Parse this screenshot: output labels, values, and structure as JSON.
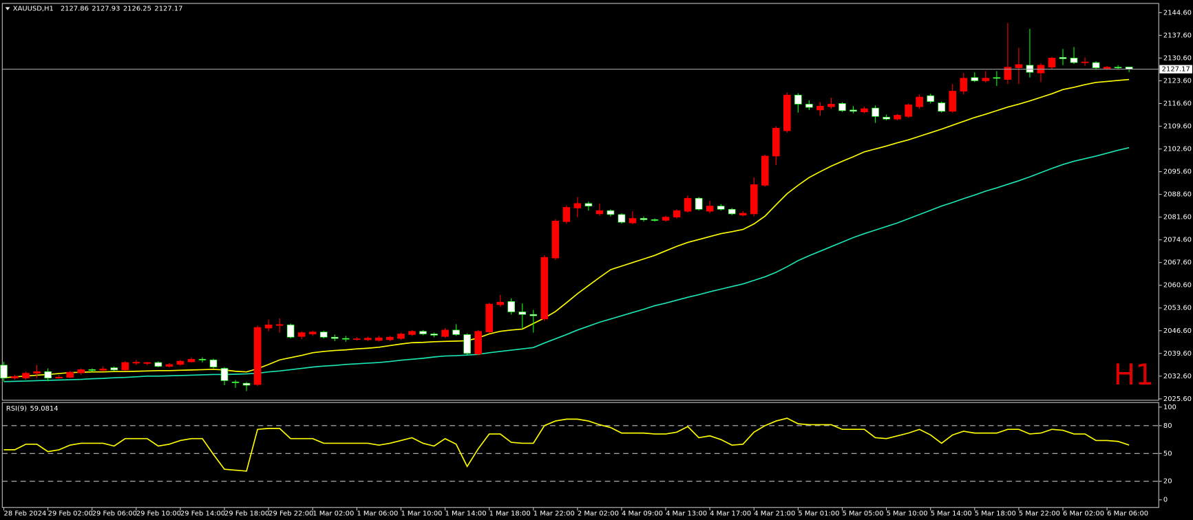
{
  "chart_data": [
    {
      "type": "candlestick",
      "symbol": "XAUUSD,H1",
      "watermark": "H1",
      "categories": [
        "28 Feb 2024",
        null,
        null,
        null,
        "29 Feb 02:00",
        null,
        null,
        null,
        "29 Feb 06:00",
        null,
        null,
        null,
        "29 Feb 10:00",
        null,
        null,
        null,
        "29 Feb 14:00",
        null,
        null,
        null,
        "29 Feb 18:00",
        null,
        null,
        null,
        "29 Feb 22:00",
        null,
        null,
        null,
        "1 Mar 02:00",
        null,
        null,
        null,
        "1 Mar 06:00",
        null,
        null,
        null,
        "1 Mar 10:00",
        null,
        null,
        null,
        "1 Mar 14:00",
        null,
        null,
        null,
        "1 Mar 18:00",
        null,
        null,
        null,
        "1 Mar 22:00",
        null,
        null,
        null,
        "2 Mar 02:00",
        null,
        null,
        null,
        "4 Mar 09:00",
        null,
        null,
        null,
        "4 Mar 13:00",
        null,
        null,
        null,
        "4 Mar 17:00",
        null,
        null,
        null,
        "4 Mar 21:00",
        null,
        null,
        null,
        "5 Mar 01:00",
        null,
        null,
        null,
        "5 Mar 05:00",
        null,
        null,
        null,
        "5 Mar 10:00",
        null,
        null,
        null,
        "5 Mar 14:00",
        null,
        null,
        null,
        "5 Mar 18:00",
        null,
        null,
        null,
        "5 Mar 22:00",
        null,
        null,
        null,
        "6 Mar 02:00",
        null,
        null,
        null,
        "6 Mar 06:00",
        null,
        null
      ],
      "open": [
        2036,
        2032,
        2032,
        2033.5,
        2034,
        2032,
        2032.2,
        2033.6,
        2034.6,
        2034.4,
        2035.2,
        2034.5,
        2036.6,
        2036.5,
        2036.8,
        2035.6,
        2036.2,
        2037,
        2037.8,
        2037.6,
        2035,
        2030.8,
        2030.4,
        2030,
        2047.4,
        2048.2,
        2048.4,
        2044.8,
        2045.6,
        2046.2,
        2044.6,
        2044.2,
        2044,
        2043.8,
        2043.6,
        2043.8,
        2044.2,
        2045.4,
        2046.4,
        2045.6,
        2044.8,
        2046.8,
        2045.4,
        2039.4,
        2046.2,
        2054.6,
        2055.6,
        2052.4,
        2051.6,
        2050.2,
        2069,
        2080.2,
        2084.4,
        2085.8,
        2082.6,
        2083.6,
        2082.4,
        2079.8,
        2081.2,
        2080.8,
        2080.6,
        2081.6,
        2083.4,
        2087.4,
        2083.4,
        2085,
        2084,
        2082.2,
        2082.6,
        2091.4,
        2100.4,
        2108.2,
        2119.2,
        2116.4,
        2114.6,
        2115.6,
        2116.6,
        2114.6,
        2114,
        2115.2,
        2112.4,
        2111.8,
        2112.6,
        2115.6,
        2119,
        2116.8,
        2114.2,
        2120.4,
        2124.6,
        2123.6,
        2124.6,
        2124,
        2127.6,
        2128.4,
        2126,
        2127.8,
        2130.8,
        2130.6,
        2129.2,
        2129.2,
        2127.4,
        2127.8,
        2127.86
      ],
      "high": [
        2037,
        2033,
        2034,
        2036,
        2035,
        2033,
        2034.2,
        2035,
        2035,
        2035.6,
        2035.6,
        2037.2,
        2037.6,
        2037,
        2037.2,
        2036.6,
        2037.6,
        2038.4,
        2038.4,
        2038,
        2035.4,
        2031.4,
        2030.8,
        2048.2,
        2050,
        2050.4,
        2048.8,
        2046.4,
        2046.6,
        2046.6,
        2045.4,
        2045,
        2044.6,
        2044.8,
        2045,
        2045,
        2046,
        2046.8,
        2046.8,
        2046,
        2047.4,
        2048.6,
        2045.8,
        2046.8,
        2055.2,
        2057.6,
        2056.6,
        2055,
        2053,
        2069.8,
        2081,
        2085.2,
        2087.8,
        2086.4,
        2085.8,
        2084,
        2082.8,
        2083.4,
        2081.8,
        2081.2,
        2082,
        2084,
        2088.2,
        2087.8,
        2086.6,
        2085.6,
        2084.4,
        2083.4,
        2093.8,
        2100.8,
        2109.6,
        2120,
        2119.8,
        2117.6,
        2117,
        2118.4,
        2117,
        2115.8,
        2115.6,
        2116,
        2113.2,
        2113.4,
        2116.6,
        2119.4,
        2119.6,
        2117.2,
        2122.6,
        2126,
        2126.2,
        2126.6,
        2126.6,
        2141.4,
        2133.8,
        2139.6,
        2129,
        2131,
        2133.4,
        2134,
        2130.8,
        2129.6,
        2128.2,
        2128.4,
        2127.93
      ],
      "low": [
        2031,
        2031.5,
        2031.5,
        2032,
        2031,
        2031.8,
        2032,
        2033,
        2034,
        2034,
        2034.2,
        2034.2,
        2036,
        2036,
        2035.3,
        2035.2,
        2035.8,
        2036.8,
        2036.8,
        2035,
        2029.8,
        2029,
        2028,
        2029.6,
        2046.4,
        2046,
        2044.2,
        2044,
        2045,
        2044.2,
        2043.4,
        2043.2,
        2043.6,
        2043.4,
        2043.2,
        2043.4,
        2043.8,
        2045,
        2045.2,
        2044.6,
        2044.4,
        2045,
        2039.2,
        2039,
        2045.8,
        2054,
        2051.6,
        2047.4,
        2046,
        2049.6,
        2068.4,
        2079.6,
        2081.6,
        2083.6,
        2082,
        2081.8,
        2079.6,
        2079.4,
        2080.2,
        2080.2,
        2080.2,
        2081.2,
        2083,
        2083.6,
        2082.8,
        2083.6,
        2082.2,
        2081.8,
        2081.8,
        2091,
        2097.6,
        2107.6,
        2113.8,
        2114.6,
        2112.8,
        2115,
        2114,
        2113.6,
        2113.6,
        2110.6,
        2111.4,
        2111.4,
        2112.2,
        2115,
        2116.6,
        2113.8,
        2113.8,
        2119.4,
        2123.2,
        2123,
        2122,
        2122.6,
        2122.6,
        2124.6,
        2123.2,
        2127.2,
        2128.4,
        2128.8,
        2128.2,
        2127,
        2127,
        2127.2,
        2126.25
      ],
      "close": [
        2032,
        2032.5,
        2033.5,
        2034,
        2032,
        2032.3,
        2033.8,
        2034.6,
        2034.4,
        2034.8,
        2034.5,
        2036.8,
        2036.9,
        2036.8,
        2035.6,
        2036.2,
        2037.2,
        2037.8,
        2037.6,
        2035.4,
        2031.2,
        2030.6,
        2029.8,
        2047.6,
        2048.4,
        2048.5,
        2044.6,
        2046,
        2046.2,
        2044.6,
        2044.2,
        2044,
        2044.1,
        2044.3,
        2044.4,
        2044.6,
        2045.6,
        2046.4,
        2045.6,
        2045.2,
        2046.8,
        2045.4,
        2039.6,
        2046.4,
        2054.8,
        2055.4,
        2052.4,
        2051.6,
        2051.2,
        2069.2,
        2080.4,
        2084.6,
        2085.8,
        2085,
        2083.6,
        2082.4,
        2080,
        2081.2,
        2080.8,
        2080.6,
        2081.6,
        2083.6,
        2087.4,
        2084,
        2085,
        2084,
        2082.6,
        2082.8,
        2091.6,
        2100.4,
        2109,
        2119.2,
        2116.4,
        2115.4,
        2115.8,
        2116.4,
        2114.4,
        2114.2,
        2115,
        2112.6,
        2111.8,
        2113,
        2116.2,
        2118.6,
        2117.2,
        2114.2,
        2120.4,
        2124.4,
        2123.6,
        2124.4,
        2124.4,
        2127.8,
        2128.6,
        2126.2,
        2128.4,
        2130.6,
        2130.4,
        2129.2,
        2129.4,
        2127.6,
        2127.8,
        2127.6,
        2127.17
      ],
      "up_color": "#ff0000",
      "down_color": "#ffffff",
      "wick_up_color": "#ff0000",
      "wick_down_color": "#00ff00",
      "price_line_color": "#a0a0a0",
      "lines": [
        {
          "color": "#ffff00",
          "values": [
            2032.1,
            2032.4,
            2032.6,
            2032.9,
            2033.1,
            2033.4,
            2033.7,
            2033.8,
            2033.9,
            2033.9,
            2034.0,
            2034.0,
            2034.1,
            2034.2,
            2034.3,
            2034.3,
            2034.4,
            2034.5,
            2034.6,
            2034.7,
            2034.5,
            2034.1,
            2033.9,
            2034.9,
            2036.2,
            2037.6,
            2038.3,
            2039.0,
            2039.8,
            2040.2,
            2040.5,
            2040.7,
            2041.0,
            2041.2,
            2041.5,
            2042.0,
            2042.5,
            2042.9,
            2043.0,
            2043.2,
            2043.3,
            2043.4,
            2043.5,
            2044.4,
            2045.6,
            2046.4,
            2046.8,
            2047.1,
            2048.8,
            2050.5,
            2052.5,
            2055.2,
            2058.0,
            2060.5,
            2063.0,
            2065.4,
            2066.5,
            2067.6,
            2068.7,
            2069.8,
            2071.2,
            2072.6,
            2073.8,
            2074.7,
            2075.6,
            2076.5,
            2077.1,
            2077.8,
            2079.5,
            2081.9,
            2085.4,
            2088.8,
            2091.4,
            2093.8,
            2095.6,
            2097.3,
            2098.8,
            2100.2,
            2101.7,
            2102.6,
            2103.5,
            2104.5,
            2105.4,
            2106.5,
            2107.6,
            2108.7,
            2109.9,
            2111.1,
            2112.3,
            2113.3,
            2114.4,
            2115.5,
            2116.4,
            2117.4,
            2118.5,
            2119.6,
            2120.9,
            2121.6,
            2122.4,
            2123.1,
            2123.4,
            2123.7,
            2124.0
          ]
        },
        {
          "color": "#19e6b4",
          "values": [
            2030.9,
            2031.0,
            2031.1,
            2031.2,
            2031.3,
            2031.4,
            2031.5,
            2031.6,
            2031.8,
            2031.9,
            2032.1,
            2032.2,
            2032.4,
            2032.6,
            2032.6,
            2032.7,
            2032.8,
            2032.9,
            2033.0,
            2033.1,
            2033.1,
            2033.2,
            2033.3,
            2033.5,
            2033.9,
            2034.2,
            2034.6,
            2035.0,
            2035.4,
            2035.7,
            2035.9,
            2036.2,
            2036.4,
            2036.6,
            2036.8,
            2037.1,
            2037.5,
            2037.8,
            2038.1,
            2038.5,
            2038.8,
            2038.9,
            2039.1,
            2039.3,
            2039.8,
            2040.2,
            2040.6,
            2041.0,
            2041.4,
            2042.8,
            2044.1,
            2045.4,
            2046.8,
            2048.0,
            2049.2,
            2050.2,
            2051.2,
            2052.2,
            2053.2,
            2054.3,
            2055.1,
            2056.0,
            2056.9,
            2057.7,
            2058.6,
            2059.4,
            2060.2,
            2061.0,
            2062.1,
            2063.2,
            2064.6,
            2066.3,
            2068.2,
            2069.7,
            2071.1,
            2072.5,
            2073.9,
            2075.3,
            2076.5,
            2077.6,
            2078.7,
            2079.8,
            2081.1,
            2082.4,
            2083.7,
            2085.0,
            2086.1,
            2087.3,
            2088.4,
            2089.6,
            2090.6,
            2091.7,
            2092.8,
            2094.0,
            2095.3,
            2096.6,
            2097.8,
            2098.8,
            2099.6,
            2100.4,
            2101.3,
            2102.2,
            2103.0
          ]
        }
      ],
      "ylim": [
        2025.4,
        2147.2
      ],
      "yticks": [
        {
          "value": 2025.6,
          "label": "2025.60"
        },
        {
          "value": 2032.6,
          "label": "2032.60"
        },
        {
          "value": 2039.6,
          "label": "2039.60"
        },
        {
          "value": 2046.6,
          "label": "2046.60"
        },
        {
          "value": 2053.6,
          "label": "2053.60"
        },
        {
          "value": 2060.6,
          "label": "2060.60"
        },
        {
          "value": 2067.6,
          "label": "2067.60"
        },
        {
          "value": 2074.6,
          "label": "2074.60"
        },
        {
          "value": 2081.6,
          "label": "2081.60"
        },
        {
          "value": 2088.6,
          "label": "2088.60"
        },
        {
          "value": 2095.6,
          "label": "2095.60"
        },
        {
          "value": 2102.6,
          "label": "2102.60"
        },
        {
          "value": 2109.6,
          "label": "2109.60"
        },
        {
          "value": 2116.6,
          "label": "2116.60"
        },
        {
          "value": 2123.6,
          "label": "2123.60"
        },
        {
          "value": 2130.6,
          "label": "2130.60"
        },
        {
          "value": 2137.6,
          "label": "2137.60"
        },
        {
          "value": 2144.6,
          "label": "2144.60"
        }
      ]
    },
    {
      "type": "line",
      "title": "RSI(9)",
      "series": [
        {
          "color": "#ffff00",
          "values": [
            54,
            54,
            60,
            60,
            52,
            54,
            59,
            61,
            61,
            61,
            58,
            66,
            66,
            66,
            58,
            60,
            64,
            66,
            66,
            49,
            33,
            32,
            31,
            76,
            77,
            77,
            66,
            66,
            66,
            61,
            61,
            61,
            61,
            61,
            59,
            61,
            64,
            67,
            61,
            58,
            66,
            60,
            36,
            55,
            71,
            71,
            62,
            61,
            61,
            80,
            85,
            87,
            87,
            85,
            81,
            78,
            72,
            72,
            72,
            71,
            71,
            73,
            79,
            67,
            69,
            65,
            59,
            60,
            73,
            80,
            85,
            88,
            82,
            81,
            81,
            81,
            76,
            76,
            76,
            67,
            66,
            69,
            72,
            76,
            70,
            61,
            70,
            74,
            72,
            72,
            72,
            76,
            76,
            71,
            72,
            76,
            75,
            71,
            71,
            64,
            64,
            63,
            59.0814
          ]
        }
      ],
      "ylim": [
        0,
        100
      ],
      "yticks": [
        0,
        20,
        50,
        80,
        100
      ],
      "levels": [
        20,
        50,
        80
      ],
      "level_color": "#c0c0c0"
    }
  ]
}
